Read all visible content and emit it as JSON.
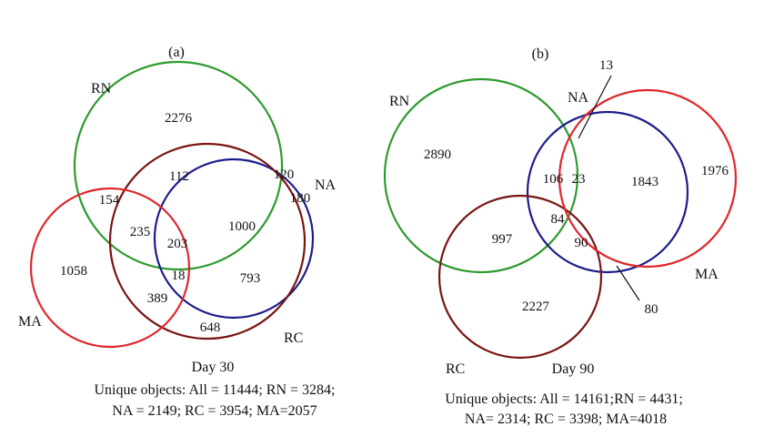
{
  "colors": {
    "RN": "#2e9a2e",
    "NA": "#1c1c8c",
    "RC": "#7a1414",
    "MA": "#e0262b"
  },
  "panel_a": {
    "title": "(a)",
    "set_labels": {
      "RN": "RN",
      "NA": "NA",
      "RC": "RC",
      "MA": "MA"
    },
    "region_counts": {
      "RN_only": "2276",
      "RN_RC": "112",
      "RN_NA": "120",
      "NA_only": "180",
      "RN_MA": "154",
      "RN_RC_MA": "235",
      "RN_RC_NA_MA": "203",
      "RN_RC_NA": "1000",
      "MA_only": "1058",
      "RC_NA_MA": "18",
      "RC_NA": "793",
      "RC_MA": "389",
      "RC_only": "648"
    },
    "day": "Day 30",
    "caption_line1": "Unique objects: All = 11444; RN = 3284;",
    "caption_line2": "NA = 2149; RC = 3954; MA=2057"
  },
  "panel_b": {
    "title": "(b)",
    "set_labels": {
      "RN": "RN",
      "NA": "NA",
      "RC": "RC",
      "MA": "MA"
    },
    "region_counts": {
      "RN_NA_MA": "13",
      "RN_only": "2890",
      "RN_NA": "106",
      "NA_MA": "23",
      "MA_only": "1843",
      "MA_ring": "1976",
      "RN_RC_NA": "84",
      "RN_RC": "997",
      "RC_NA": "90",
      "NA_only": "80",
      "RC_only": "2227"
    },
    "day": "Day 90",
    "caption_line1": "Unique objects: All = 14161;RN = 4431;",
    "caption_line2": "NA= 2314; RC = 3398; MA=4018"
  }
}
